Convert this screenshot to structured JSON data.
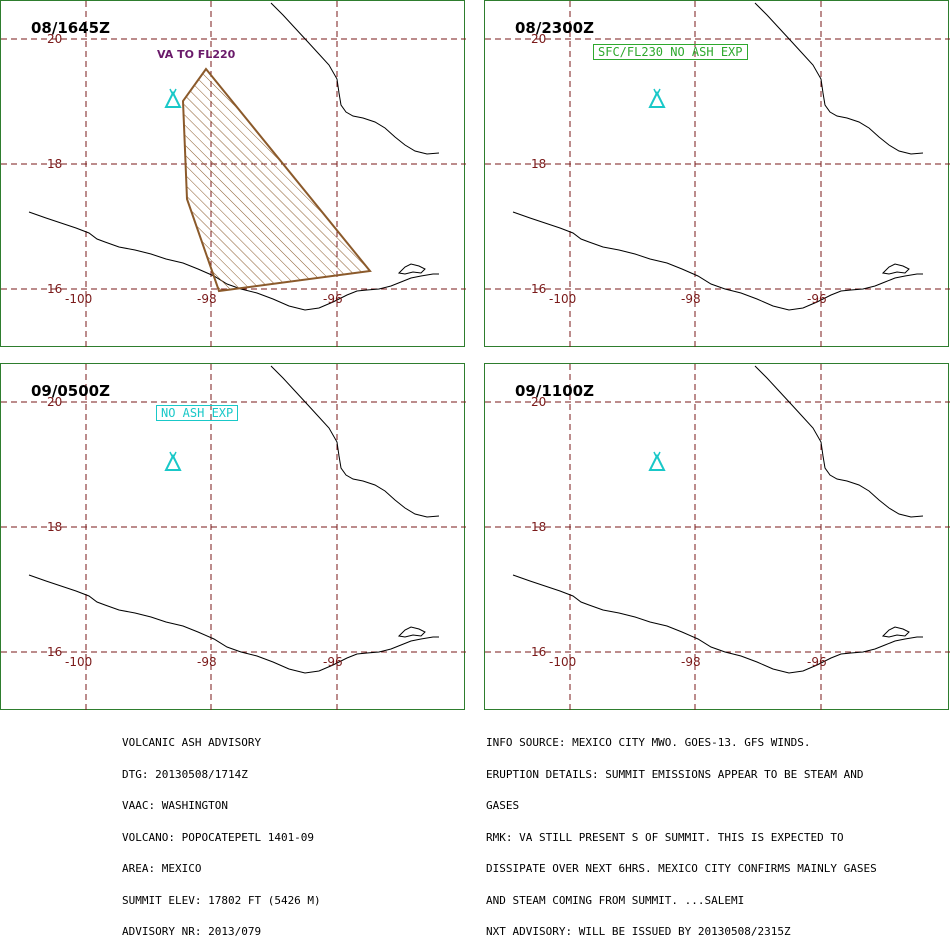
{
  "panels": [
    {
      "time": "08/1645Z",
      "status_label": "VA TO FL220",
      "status_color": "#6a1a6a",
      "has_polygon": true
    },
    {
      "time": "08/2300Z",
      "status_label": "SFC/FL230 NO ASH EXP",
      "status_color": "#2ea82e",
      "has_polygon": false
    },
    {
      "time": "09/0500Z",
      "status_label": "NO ASH EXP",
      "status_color": "#19c8c8",
      "has_polygon": false
    },
    {
      "time": "09/1100Z",
      "status_label": "",
      "status_color": "",
      "has_polygon": false
    }
  ],
  "lat_labels": [
    "20",
    "18",
    "16"
  ],
  "lon_labels": [
    "-100",
    "-98",
    "-96"
  ],
  "colors": {
    "grid": "#7a1a1a",
    "coast": "#000000",
    "volcano": "#19c8c8",
    "polygon": "#8b5a2b",
    "border": "#2e7d2e"
  },
  "volcano_icon": "volcano-icon",
  "advisory_left": [
    "VOLCANIC ASH ADVISORY",
    "DTG: 20130508/1714Z",
    "VAAC: WASHINGTON",
    "VOLCANO: POPOCATEPETL 1401-09",
    "AREA: MEXICO",
    "SUMMIT ELEV: 17802 FT (5426 M)",
    "ADVISORY NR: 2013/079"
  ],
  "advisory_right": [
    "INFO SOURCE: MEXICO CITY MWO. GOES-13. GFS WINDS.",
    "ERUPTION DETAILS: SUMMIT EMISSIONS APPEAR TO BE STEAM AND",
    "GASES",
    "RMK: VA STILL PRESENT S OF SUMMIT. THIS IS EXPECTED TO",
    "DISSIPATE OVER NEXT 6HRS. MEXICO CITY CONFIRMS MAINLY GASES",
    "AND STEAM COMING FROM SUMMIT. ...SALEMI",
    "NXT ADVISORY: WILL BE ISSUED BY 20130508/2315Z"
  ]
}
